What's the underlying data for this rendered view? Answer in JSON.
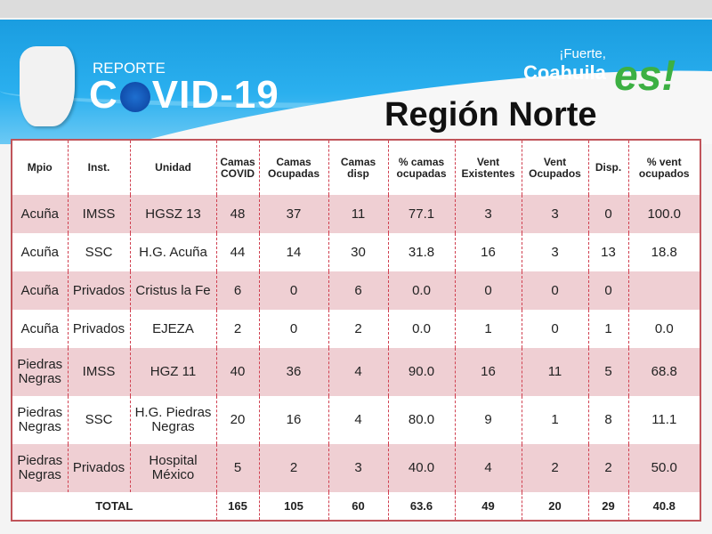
{
  "banner": {
    "report_label": "REPORTE",
    "covid_prefix": "C",
    "covid_suffix": "VID-19",
    "slogan_line1": "¡Fuerte,",
    "slogan_line2": "Coahuila",
    "slogan_es": "es!",
    "region": "Región Norte"
  },
  "table": {
    "headers": [
      "Mpio",
      "Inst.",
      "Unidad",
      "Camas COVID",
      "Camas Ocupadas",
      "Camas disp",
      "% camas ocupadas",
      "Vent Existentes",
      "Vent Ocupados",
      "Disp.",
      "% vent ocupados"
    ],
    "rows": [
      [
        "Acuña",
        "IMSS",
        "HGSZ 13",
        "48",
        "37",
        "11",
        "77.1",
        "3",
        "3",
        "0",
        "100.0"
      ],
      [
        "Acuña",
        "SSC",
        "H.G. Acuña",
        "44",
        "14",
        "30",
        "31.8",
        "16",
        "3",
        "13",
        "18.8"
      ],
      [
        "Acuña",
        "Privados",
        "Cristus la Fe",
        "6",
        "0",
        "6",
        "0.0",
        "0",
        "0",
        "0",
        ""
      ],
      [
        "Acuña",
        "Privados",
        "EJEZA",
        "2",
        "0",
        "2",
        "0.0",
        "1",
        "0",
        "1",
        "0.0"
      ],
      [
        "Piedras Negras",
        "IMSS",
        "HGZ 11",
        "40",
        "36",
        "4",
        "90.0",
        "16",
        "11",
        "5",
        "68.8"
      ],
      [
        "Piedras Negras",
        "SSC",
        "H.G. Piedras Negras",
        "20",
        "16",
        "4",
        "80.0",
        "9",
        "1",
        "8",
        "11.1"
      ],
      [
        "Piedras Negras",
        "Privados",
        "Hospital México",
        "5",
        "2",
        "3",
        "40.0",
        "4",
        "2",
        "2",
        "50.0"
      ]
    ],
    "total": [
      "TOTAL",
      "165",
      "105",
      "60",
      "63.6",
      "49",
      "20",
      "29",
      "40.8"
    ]
  },
  "colors": {
    "banner_blue": "#1a9de0",
    "row_pink": "#efcfd3",
    "border_red": "#c0545a"
  }
}
